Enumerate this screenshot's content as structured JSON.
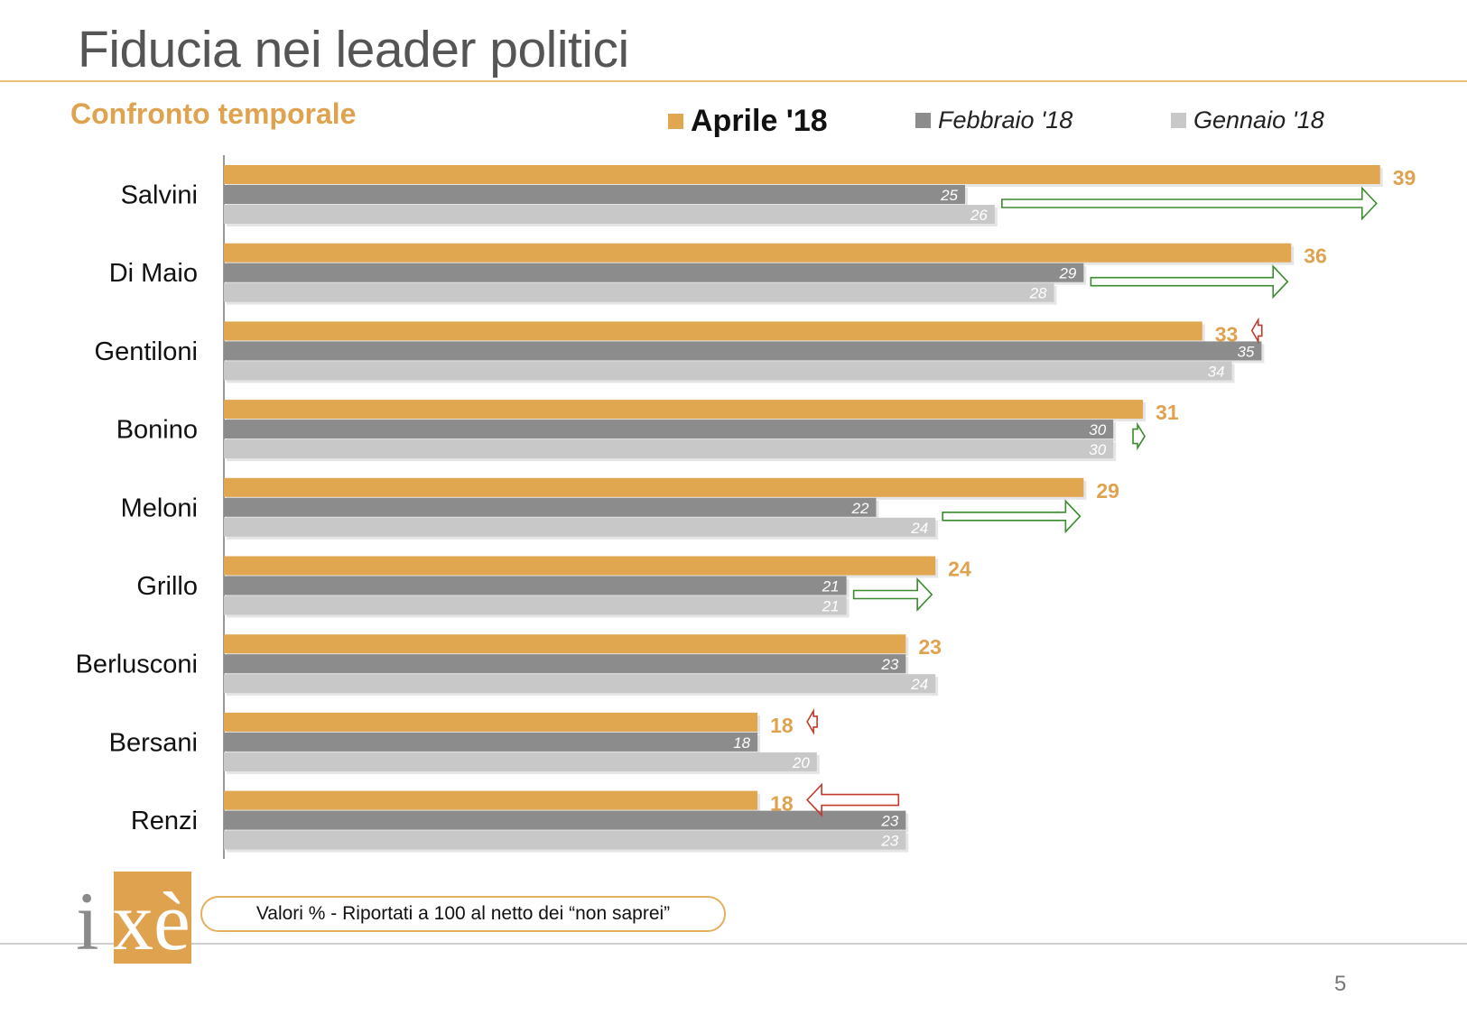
{
  "page": {
    "title": "Fiducia nei leader politici",
    "subtitle": "Confronto temporale",
    "footnote": "Valori % - Riportati a 100 al netto dei “non saprei”",
    "page_number": "5",
    "logo_text": "ixè"
  },
  "colors": {
    "accent": "#dfa24e",
    "series_primary": "#e0a650",
    "series_secondary": "#8c8c8c",
    "series_tertiary": "#c8c8c8",
    "arrow_up": "#3a8a2e",
    "arrow_down": "#c0392b"
  },
  "chart_data": {
    "type": "bar",
    "orientation": "horizontal",
    "categories": [
      "Salvini",
      "Di Maio",
      "Gentiloni",
      "Bonino",
      "Meloni",
      "Grillo",
      "Berlusconi",
      "Bersani",
      "Renzi"
    ],
    "series": [
      {
        "name": "Aprile '18",
        "values": [
          39,
          36,
          33,
          31,
          29,
          24,
          23,
          18,
          18
        ]
      },
      {
        "name": "Febbraio '18",
        "values": [
          25,
          29,
          35,
          30,
          22,
          21,
          23,
          18,
          23
        ]
      },
      {
        "name": "Gennaio '18",
        "values": [
          26,
          28,
          34,
          30,
          24,
          21,
          24,
          20,
          23
        ]
      }
    ],
    "trend_arrows": [
      "up",
      "up",
      "down",
      "up",
      "up",
      "up",
      "none",
      "down",
      "down"
    ],
    "xlim": [
      0,
      39
    ],
    "legend_position": "top",
    "grid": false
  }
}
